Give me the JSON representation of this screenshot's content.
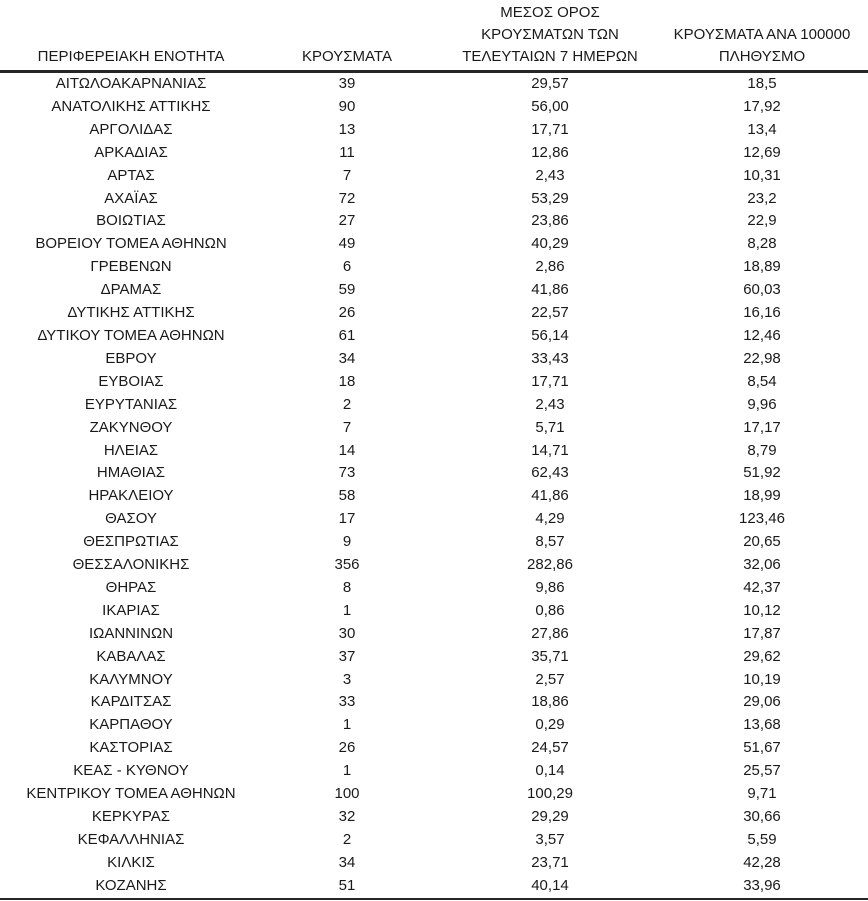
{
  "colors": {
    "background": "#ffffff",
    "text": "#1a1a1a",
    "rule": "#262626"
  },
  "chart_data": {
    "type": "table",
    "columns": [
      "ΠΕΡΙΦΕΡΕΙΑΚΗ ΕΝΟΤΗΤΑ",
      "ΚΡΟΥΣΜΑΤΑ",
      "ΜΕΣΟΣ ΟΡΟΣ\nΚΡΟΥΣΜΑΤΩΝ ΤΩΝ\nΤΕΛΕΥΤΑΙΩΝ 7 ΗΜΕΡΩΝ",
      "ΚΡΟΥΣΜΑΤΑ ΑΝΑ 100000\nΠΛΗΘΥΣΜΟ"
    ],
    "rows": [
      [
        "ΑΙΤΩΛΟΑΚΑΡΝΑΝΙΑΣ",
        "39",
        "29,57",
        "18,5"
      ],
      [
        "ΑΝΑΤΟΛΙΚΗΣ ΑΤΤΙΚΗΣ",
        "90",
        "56,00",
        "17,92"
      ],
      [
        "ΑΡΓΟΛΙΔΑΣ",
        "13",
        "17,71",
        "13,4"
      ],
      [
        "ΑΡΚΑΔΙΑΣ",
        "11",
        "12,86",
        "12,69"
      ],
      [
        "ΑΡΤΑΣ",
        "7",
        "2,43",
        "10,31"
      ],
      [
        "ΑΧΑΪΑΣ",
        "72",
        "53,29",
        "23,2"
      ],
      [
        "ΒΟΙΩΤΙΑΣ",
        "27",
        "23,86",
        "22,9"
      ],
      [
        "ΒΟΡΕΙΟΥ ΤΟΜΕΑ ΑΘΗΝΩΝ",
        "49",
        "40,29",
        "8,28"
      ],
      [
        "ΓΡΕΒΕΝΩΝ",
        "6",
        "2,86",
        "18,89"
      ],
      [
        "ΔΡΑΜΑΣ",
        "59",
        "41,86",
        "60,03"
      ],
      [
        "ΔΥΤΙΚΗΣ ΑΤΤΙΚΗΣ",
        "26",
        "22,57",
        "16,16"
      ],
      [
        "ΔΥΤΙΚΟΥ ΤΟΜΕΑ ΑΘΗΝΩΝ",
        "61",
        "56,14",
        "12,46"
      ],
      [
        "ΕΒΡΟΥ",
        "34",
        "33,43",
        "22,98"
      ],
      [
        "ΕΥΒΟΙΑΣ",
        "18",
        "17,71",
        "8,54"
      ],
      [
        "ΕΥΡΥΤΑΝΙΑΣ",
        "2",
        "2,43",
        "9,96"
      ],
      [
        "ΖΑΚΥΝΘΟΥ",
        "7",
        "5,71",
        "17,17"
      ],
      [
        "ΗΛΕΙΑΣ",
        "14",
        "14,71",
        "8,79"
      ],
      [
        "ΗΜΑΘΙΑΣ",
        "73",
        "62,43",
        "51,92"
      ],
      [
        "ΗΡΑΚΛΕΙΟΥ",
        "58",
        "41,86",
        "18,99"
      ],
      [
        "ΘΑΣΟΥ",
        "17",
        "4,29",
        "123,46"
      ],
      [
        "ΘΕΣΠΡΩΤΙΑΣ",
        "9",
        "8,57",
        "20,65"
      ],
      [
        "ΘΕΣΣΑΛΟΝΙΚΗΣ",
        "356",
        "282,86",
        "32,06"
      ],
      [
        "ΘΗΡΑΣ",
        "8",
        "9,86",
        "42,37"
      ],
      [
        "ΙΚΑΡΙΑΣ",
        "1",
        "0,86",
        "10,12"
      ],
      [
        "ΙΩΑΝΝΙΝΩΝ",
        "30",
        "27,86",
        "17,87"
      ],
      [
        "ΚΑΒΑΛΑΣ",
        "37",
        "35,71",
        "29,62"
      ],
      [
        "ΚΑΛΥΜΝΟΥ",
        "3",
        "2,57",
        "10,19"
      ],
      [
        "ΚΑΡΔΙΤΣΑΣ",
        "33",
        "18,86",
        "29,06"
      ],
      [
        "ΚΑΡΠΑΘΟΥ",
        "1",
        "0,29",
        "13,68"
      ],
      [
        "ΚΑΣΤΟΡΙΑΣ",
        "26",
        "24,57",
        "51,67"
      ],
      [
        "ΚΕΑΣ - ΚΥΘΝΟΥ",
        "1",
        "0,14",
        "25,57"
      ],
      [
        "ΚΕΝΤΡΙΚΟΥ ΤΟΜΕΑ ΑΘΗΝΩΝ",
        "100",
        "100,29",
        "9,71"
      ],
      [
        "ΚΕΡΚΥΡΑΣ",
        "32",
        "29,29",
        "30,66"
      ],
      [
        "ΚΕΦΑΛΛΗΝΙΑΣ",
        "2",
        "3,57",
        "5,59"
      ],
      [
        "ΚΙΛΚΙΣ",
        "34",
        "23,71",
        "42,28"
      ],
      [
        "ΚΟΖΑΝΗΣ",
        "51",
        "40,14",
        "33,96"
      ]
    ]
  }
}
